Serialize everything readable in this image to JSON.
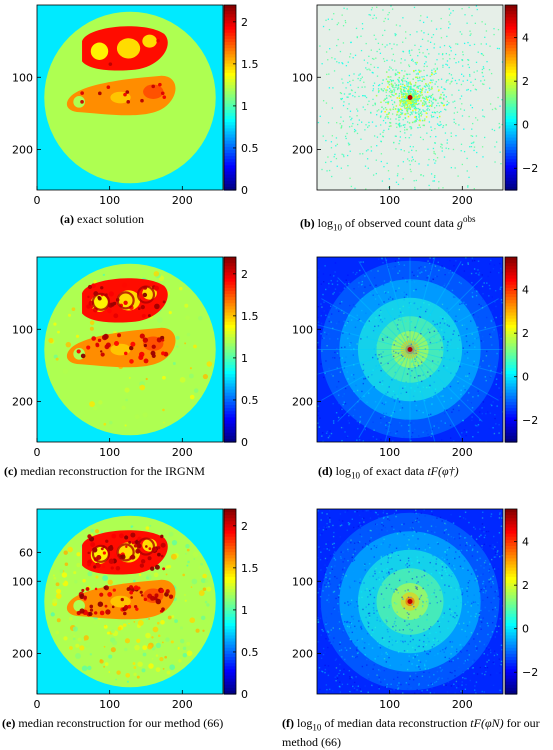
{
  "figure": {
    "panels": [
      {
        "id": "a",
        "label": "(a)",
        "caption": "exact solution",
        "kind": "image",
        "axis": {
          "xticks": [
            "0",
            "100",
            "200"
          ],
          "yticks": [
            "100",
            "200"
          ]
        },
        "colorbar": {
          "ticks": [
            "2",
            "1.5",
            "1",
            "0.5",
            "0"
          ],
          "range": [
            0,
            2.2
          ]
        }
      },
      {
        "id": "b",
        "label": "(b)",
        "caption_prefix": "log",
        "caption_sub": "10",
        "caption_mid": " of observed count data ",
        "caption_math": "g",
        "caption_sup": "obs",
        "kind": "log-data-sparse",
        "axis": {
          "xticks": [
            "100",
            "200"
          ],
          "yticks": [
            "100",
            "200"
          ]
        },
        "colorbar": {
          "ticks": [
            "4",
            "2",
            "0",
            "−2"
          ],
          "range": [
            -3,
            5.5
          ]
        }
      },
      {
        "id": "c",
        "label": "(c)",
        "caption": "median reconstruction for the IRGNM",
        "kind": "image-recon",
        "axis": {
          "xticks": [
            "0",
            "100",
            "200"
          ],
          "yticks": [
            "100",
            "200"
          ]
        },
        "colorbar": {
          "ticks": [
            "2",
            "1.5",
            "1",
            "0.5",
            "0"
          ],
          "range": [
            0,
            2.2
          ]
        }
      },
      {
        "id": "d",
        "label": "(d)",
        "caption_prefix": "log",
        "caption_sub": "10",
        "caption_mid": " of exact data ",
        "caption_math": "tF(φ†)",
        "kind": "log-data-dense",
        "axis": {
          "xticks": [
            "100",
            "200"
          ],
          "yticks": [
            "100",
            "200"
          ]
        },
        "colorbar": {
          "ticks": [
            "4",
            "2",
            "0",
            "−2"
          ],
          "range": [
            -3,
            5.5
          ]
        }
      },
      {
        "id": "e",
        "label": "(e)",
        "caption": "median reconstruction for our method (66)",
        "kind": "image-noisy",
        "axis": {
          "xticks": [
            "0",
            "100",
            "200"
          ],
          "yticks": [
            "60",
            "100",
            "200"
          ]
        },
        "colorbar": {
          "ticks": [
            "2",
            "1.5",
            "1",
            "0.5",
            "0"
          ],
          "range": [
            0,
            2.2
          ]
        }
      },
      {
        "id": "f",
        "label": "(f)",
        "caption_prefix": "log",
        "caption_sub": "10",
        "caption_mid": " of median data reconstruction ",
        "caption_math": "tF(φN)",
        "caption_tail": " for our method (66)",
        "kind": "log-data-medium",
        "axis": {
          "xticks": [
            "100",
            "200"
          ],
          "yticks": [
            "100",
            "200"
          ]
        },
        "colorbar": {
          "ticks": [
            "4",
            "2",
            "0",
            "−2"
          ],
          "range": [
            -3,
            5.5
          ]
        }
      }
    ]
  }
}
